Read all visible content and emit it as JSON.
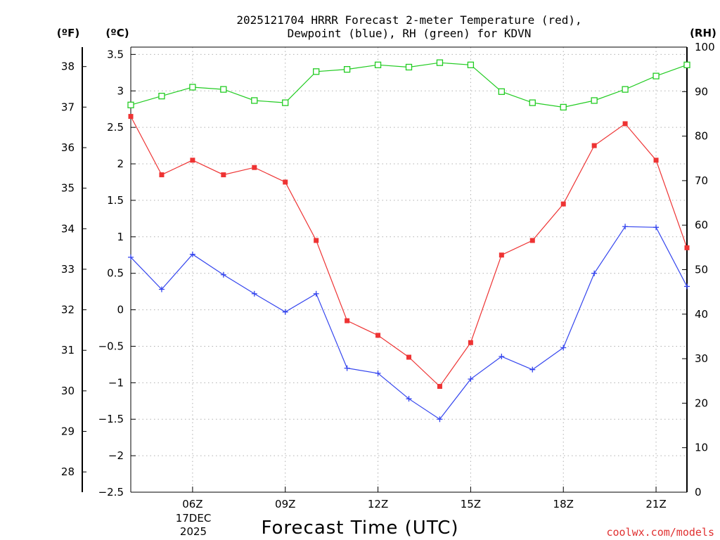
{
  "chart_data": {
    "type": "line",
    "title_line1": "2025121704 HRRR Forecast 2-meter Temperature (red),",
    "title_line2": "Dewpoint (blue), RH (green) for KDVN",
    "xlabel": "Forecast Time (UTC)",
    "credit": "coolwx.com/models",
    "units": {
      "fahrenheit": "(ºF)",
      "celsius": "(ºC)",
      "rh": "(RH)"
    },
    "date_label": {
      "day": "17DEC",
      "year": "2025"
    },
    "x": [
      4,
      5,
      6,
      7,
      8,
      9,
      10,
      11,
      12,
      13,
      14,
      15,
      16,
      17,
      18,
      19,
      20,
      21,
      22
    ],
    "xlim": [
      4,
      22
    ],
    "xticks": [
      {
        "hour": 6,
        "label": "06Z"
      },
      {
        "hour": 9,
        "label": "09Z"
      },
      {
        "hour": 12,
        "label": "12Z"
      },
      {
        "hour": 15,
        "label": "15Z"
      },
      {
        "hour": 18,
        "label": "18Z"
      },
      {
        "hour": 21,
        "label": "21Z"
      }
    ],
    "celsius_axis": {
      "lim": [
        -2.5,
        3.6
      ],
      "ticks": [
        "3.5",
        "3",
        "2.5",
        "2",
        "1.5",
        "1",
        "0.5",
        "0",
        "−0.5",
        "−1",
        "−1.5",
        "−2",
        "−2.5"
      ],
      "tick_values": [
        3.5,
        3,
        2.5,
        2,
        1.5,
        1,
        0.5,
        0,
        -0.5,
        -1,
        -1.5,
        -2,
        -2.5
      ]
    },
    "fahrenheit_axis": {
      "ticks": [
        "38",
        "37",
        "36",
        "35",
        "34",
        "33",
        "32",
        "31",
        "30",
        "29",
        "28"
      ],
      "tick_values": [
        38,
        37,
        36,
        35,
        34,
        33,
        32,
        31,
        30,
        29,
        28
      ]
    },
    "rh_axis": {
      "lim": [
        0,
        100
      ],
      "ticks": [
        "100",
        "90",
        "80",
        "70",
        "60",
        "50",
        "40",
        "30",
        "20",
        "10",
        "0"
      ],
      "tick_values": [
        100,
        90,
        80,
        70,
        60,
        50,
        40,
        30,
        20,
        10,
        0
      ]
    },
    "series": [
      {
        "name": "Temperature",
        "units": "C",
        "color": "#ee3333",
        "marker": "filled-square",
        "values": [
          2.65,
          1.85,
          2.05,
          1.85,
          1.95,
          1.75,
          0.95,
          -0.15,
          -0.35,
          -0.65,
          -1.05,
          -0.45,
          0.75,
          0.95,
          1.45,
          2.25,
          2.55,
          2.05,
          0.85
        ]
      },
      {
        "name": "Dewpoint",
        "units": "C",
        "color": "#3344ee",
        "marker": "plus",
        "values": [
          0.72,
          0.28,
          0.76,
          0.48,
          0.22,
          -0.03,
          0.22,
          -0.8,
          -0.87,
          -1.22,
          -1.5,
          -0.95,
          -0.64,
          -0.82,
          -0.52,
          0.5,
          1.14,
          1.13,
          0.32
        ]
      },
      {
        "name": "RH",
        "units": "%",
        "color": "#22cc22",
        "marker": "open-square",
        "values": [
          87,
          89,
          91,
          90.5,
          88,
          87.5,
          94.5,
          95,
          96,
          95.5,
          96.5,
          96,
          90,
          87.5,
          86.5,
          88,
          90.5,
          93.5,
          96
        ]
      }
    ]
  }
}
